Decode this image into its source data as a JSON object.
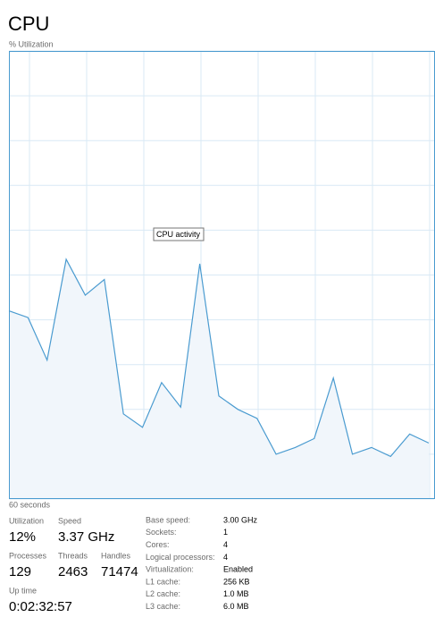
{
  "chart_data": {
    "type": "area",
    "title": "CPU",
    "y_label": "% Utilization",
    "x_label": "60 seconds",
    "annotation": "CPU activity",
    "values": [
      42,
      40.5,
      31,
      53.5,
      45.5,
      49,
      19,
      16,
      26,
      20.5,
      52.5,
      23,
      20,
      18,
      10,
      11.5,
      13.5,
      27,
      10,
      11.5,
      9.5,
      14.5,
      12.5
    ],
    "ylim": [
      0,
      100
    ],
    "yticks": [
      0,
      10,
      20,
      30,
      40,
      50,
      60,
      70,
      80,
      90,
      100
    ],
    "grid": true,
    "color": "#4a9bd0"
  },
  "stats": [
    {
      "label": "Utilization",
      "value": "12%"
    },
    {
      "label": "Speed",
      "value": "3.37 GHz"
    },
    {
      "label": "Processes",
      "value": "129"
    },
    {
      "label": "Threads",
      "value": "2463"
    },
    {
      "label": "Handles",
      "value": "71474"
    },
    {
      "label": "Up time",
      "value": "0:02:32:57"
    }
  ],
  "details": [
    {
      "label": "Base speed:",
      "value": "3.00 GHz"
    },
    {
      "label": "Sockets:",
      "value": "1"
    },
    {
      "label": "Cores:",
      "value": "4"
    },
    {
      "label": "Logical processors:",
      "value": "4"
    },
    {
      "label": "Virtualization:",
      "value": "Enabled"
    },
    {
      "label": "L1 cache:",
      "value": "256 KB"
    },
    {
      "label": "L2 cache:",
      "value": "1.0 MB"
    },
    {
      "label": "L3 cache:",
      "value": "6.0 MB"
    }
  ]
}
